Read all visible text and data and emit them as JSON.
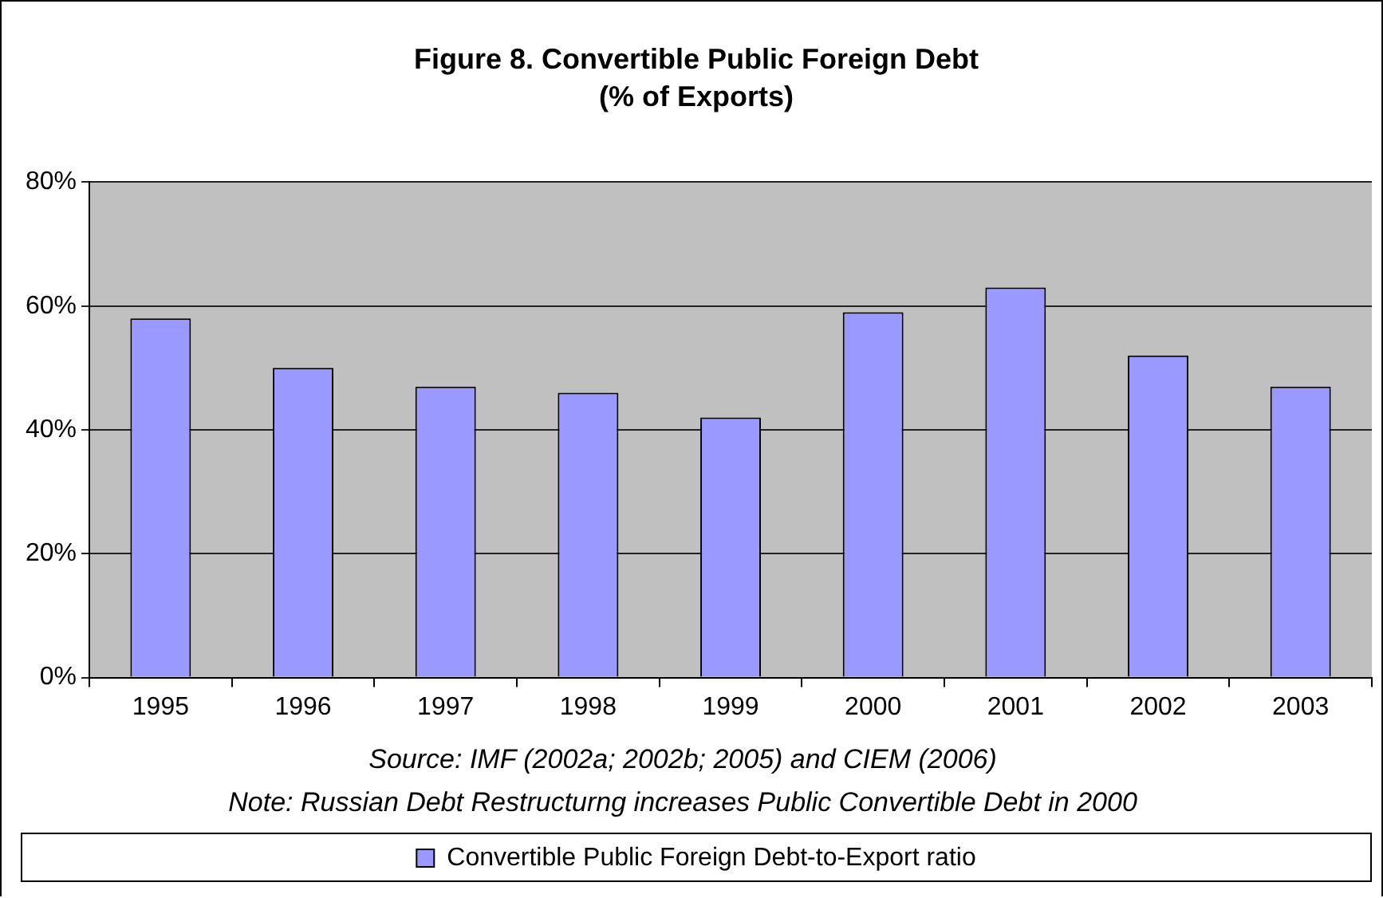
{
  "chart_data": {
    "type": "bar",
    "title": "Figure 8. Convertible Public Foreign Debt",
    "subtitle": "(% of Exports)",
    "categories": [
      "1995",
      "1996",
      "1997",
      "1998",
      "1999",
      "2000",
      "2001",
      "2002",
      "2003"
    ],
    "series": [
      {
        "name": "Convertible Public Foreign Debt-to-Export ratio",
        "color": "#9999ff",
        "values": [
          58,
          50,
          47,
          46,
          42,
          59,
          63,
          52,
          47
        ]
      }
    ],
    "ylim": [
      0,
      80
    ],
    "yticks": [
      {
        "value": 0,
        "label": "0%"
      },
      {
        "value": 20,
        "label": "20%"
      },
      {
        "value": 40,
        "label": "40%"
      },
      {
        "value": 60,
        "label": "60%"
      },
      {
        "value": 80,
        "label": "80%"
      }
    ],
    "grid": "y",
    "legend": "bottom",
    "annotations": [
      "Source: IMF (2002a; 2002b; 2005) and CIEM (2006)",
      "Note: Russian Debt Restructurng increases Public Convertible Debt in 2000"
    ]
  }
}
